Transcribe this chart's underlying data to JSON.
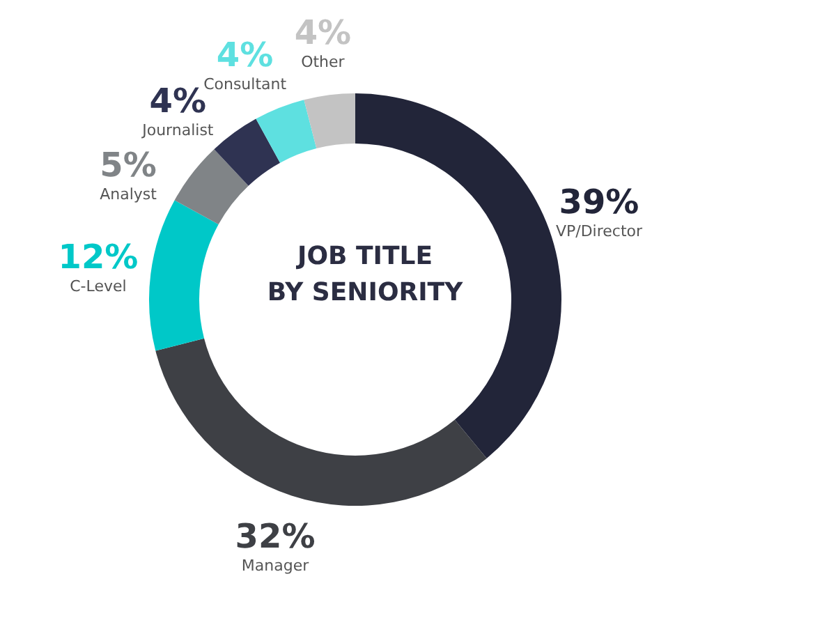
{
  "chart_data": {
    "type": "donut",
    "title": "JOB TITLE\nBY SENIORITY",
    "categories": [
      "VP/Director",
      "Manager",
      "C-Level",
      "Analyst",
      "Journalist",
      "Consultant",
      "Other"
    ],
    "values": [
      39,
      32,
      12,
      5,
      4,
      4,
      4
    ],
    "colors": [
      "#222539",
      "#3e4045",
      "#00c8c8",
      "#808487",
      "#2f3352",
      "#5ee0e0",
      "#c3c3c3"
    ],
    "value_labels": [
      "39%",
      "32%",
      "12%",
      "5%",
      "4%",
      "4%",
      "4%"
    ],
    "legend": false
  }
}
